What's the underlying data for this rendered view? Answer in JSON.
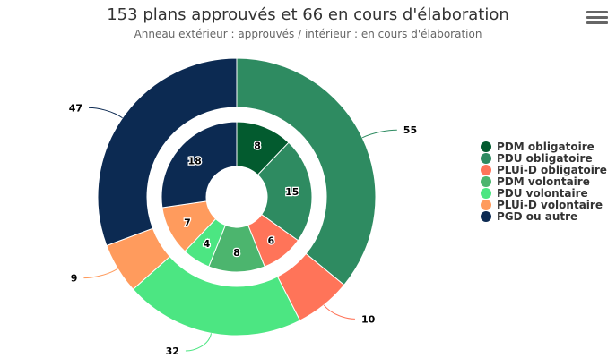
{
  "chart": {
    "title": "153 plans approuvés et 66 en cours d'élaboration",
    "subtitle": "Anneau extérieur : approuvés / intérieur : en cours d'élaboration"
  },
  "menu": {
    "icon": "hamburger-menu-icon"
  },
  "chart_data": {
    "type": "pie",
    "title": "153 plans approuvés et 66 en cours d'élaboration",
    "subtitle": "Anneau extérieur : approuvés / intérieur : en cours d'élaboration",
    "categories": [
      "PDM obligatoire",
      "PDU obligatoire",
      "PLUi-D obligatoire",
      "PDM volontaire",
      "PDU volontaire",
      "PLUi-D volontaire",
      "PGD ou autre"
    ],
    "colors": [
      "#035b2f",
      "#2e8b61",
      "#ff7459",
      "#4cb56e",
      "#4ce682",
      "#ff9b5d",
      "#0c2a52"
    ],
    "series": [
      {
        "name": "Approuvés",
        "ring": "outer",
        "values": [
          0,
          55,
          10,
          0,
          32,
          9,
          47
        ]
      },
      {
        "name": "En cours d'élaboration",
        "ring": "inner",
        "values": [
          8,
          15,
          6,
          8,
          4,
          7,
          18
        ]
      }
    ],
    "legend_position": "right"
  }
}
